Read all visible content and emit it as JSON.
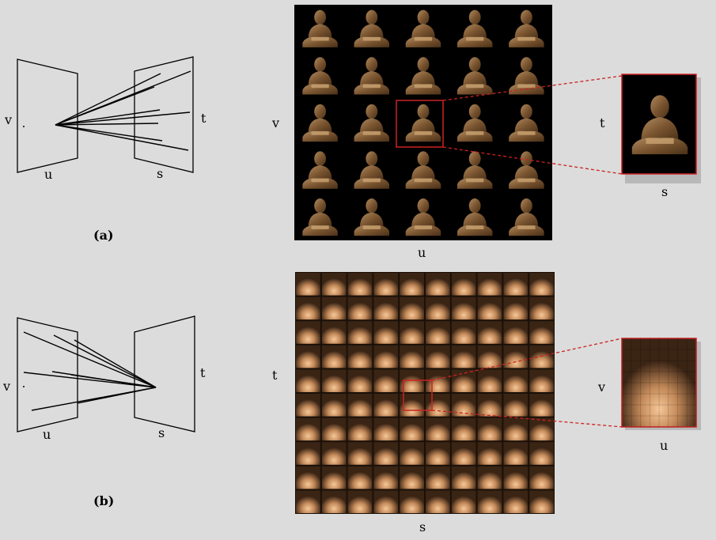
{
  "colors": {
    "background": "#dcdcdc",
    "grid_background": "#000000",
    "zoom_frame": "#cc2222",
    "statue_bronze": "#8a6236",
    "glow_orange": "#f0b070"
  },
  "panel_a": {
    "caption": "(a)",
    "diagram_labels": {
      "v": "v",
      "u": "u",
      "t": "t",
      "s": "s"
    },
    "grid_labels": {
      "v": "v",
      "u": "u"
    },
    "zoom_labels": {
      "t": "t",
      "s": "s"
    },
    "grid": {
      "rows": 5,
      "cols": 5
    }
  },
  "panel_b": {
    "caption": "(b)",
    "diagram_labels": {
      "v": "v",
      "u": "u",
      "t": "t",
      "s": "s"
    },
    "grid_labels": {
      "t": "t",
      "s": "s"
    },
    "zoom_labels": {
      "v": "v",
      "u": "u"
    },
    "grid": {
      "rows": 10,
      "cols": 10
    }
  }
}
